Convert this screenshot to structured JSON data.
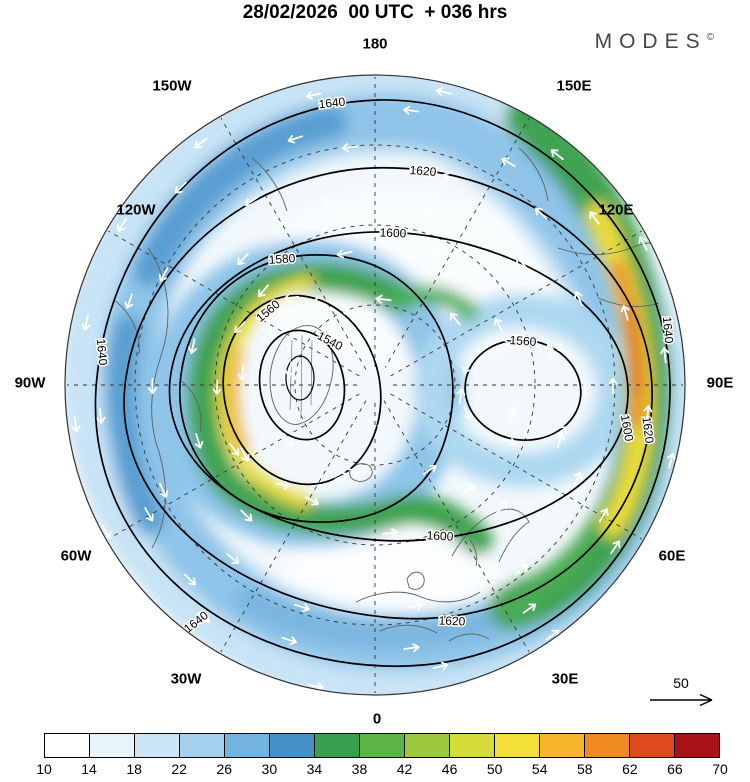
{
  "header": {
    "title": "28/02/2026  00 UTC  + 036 hrs",
    "brand": "MODES",
    "brand_mark": "©"
  },
  "map": {
    "longitude_labels": [
      "180",
      "150W",
      "150E",
      "120W",
      "120E",
      "90W",
      "90E",
      "60W",
      "60E",
      "30W",
      "30E",
      "0"
    ],
    "contour_labels": [
      "1540",
      "1560",
      "1580",
      "1600",
      "1620",
      "1640"
    ],
    "reference_arrow_label": "50"
  },
  "colorbar": {
    "ticks": [
      "10",
      "14",
      "18",
      "22",
      "26",
      "30",
      "34",
      "38",
      "42",
      "46",
      "50",
      "54",
      "58",
      "62",
      "66",
      "70"
    ],
    "colors": [
      "#ffffff",
      "#e8f4fb",
      "#cbe5f5",
      "#a3d1ed",
      "#72b4de",
      "#4590c7",
      "#37a04f",
      "#5cb544",
      "#9cc83e",
      "#d6dc3a",
      "#f2e038",
      "#f5b52c",
      "#ee8a22",
      "#dc4a1d",
      "#a81318"
    ]
  },
  "chart_data": {
    "type": "heatmap",
    "title": "28/02/2026 00 UTC + 036 hrs",
    "projection": "north-polar circular map",
    "grid": "dashed graticule, 30-degree longitude spokes",
    "longitude_ring_labels": [
      "180",
      "150W",
      "150E",
      "120W",
      "120E",
      "90W",
      "90E",
      "60W",
      "60E",
      "30W",
      "30E",
      "0"
    ],
    "contour_levels": [
      1540,
      1560,
      1580,
      1600,
      1620,
      1640
    ],
    "colorbar_tick_values": [
      10,
      14,
      18,
      22,
      26,
      30,
      34,
      38,
      42,
      46,
      50,
      54,
      58,
      62,
      66,
      70
    ],
    "colorbar_colors": [
      "#ffffff",
      "#e8f4fb",
      "#cbe5f5",
      "#a3d1ed",
      "#72b4de",
      "#4590c7",
      "#37a04f",
      "#5cb544",
      "#9cc83e",
      "#d6dc3a",
      "#f2e038",
      "#f5b52c",
      "#ee8a22",
      "#dc4a1d",
      "#a81318"
    ],
    "legend_position": "bottom",
    "reference_vector_label": "50"
  }
}
